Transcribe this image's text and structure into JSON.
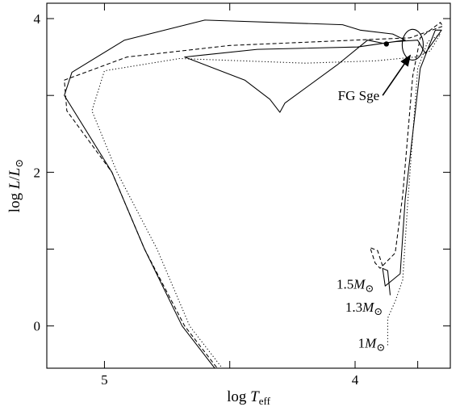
{
  "chart_data": {
    "type": "line",
    "title": "",
    "xlabel": "log T_eff",
    "xlabel_parts": {
      "base": "log ",
      "sym": "T",
      "sub": "eff"
    },
    "ylabel": "log L/L_sun",
    "ylabel_parts": {
      "base": "log ",
      "sym1": "L",
      "slash": "/",
      "sym2": "L",
      "sun": "⊙"
    },
    "xlim": [
      5.23,
      3.62
    ],
    "ylim": [
      -0.55,
      4.2
    ],
    "x_reversed": true,
    "x_ticks": [
      {
        "value": 5.0,
        "label": "5"
      },
      {
        "value": 4.0,
        "label": "4"
      }
    ],
    "y_ticks": [
      {
        "value": 0,
        "label": "0"
      },
      {
        "value": 2,
        "label": "2"
      },
      {
        "value": 4,
        "label": "4"
      }
    ],
    "x_minor_ticks": [
      4.5,
      3.75
    ],
    "y_minor_ticks": [
      1,
      3
    ],
    "grid": false,
    "series": [
      {
        "mass_label": {
          "value": "1.5",
          "sym": "M",
          "sun": "⊙"
        },
        "style": "dashed",
        "points": [
          [
            3.89,
            0.78
          ],
          [
            3.91,
            0.98
          ],
          [
            3.94,
            1.02
          ],
          [
            3.92,
            0.82
          ],
          [
            3.9,
            0.75
          ],
          [
            3.84,
            0.95
          ],
          [
            3.81,
            1.7
          ],
          [
            3.77,
            3.25
          ],
          [
            3.74,
            3.75
          ],
          [
            3.66,
            3.95
          ],
          [
            3.65,
            3.9
          ],
          [
            3.78,
            3.75
          ],
          [
            4.0,
            3.72
          ],
          [
            4.5,
            3.65
          ],
          [
            4.91,
            3.5
          ],
          [
            5.16,
            3.2
          ],
          [
            5.15,
            2.8
          ],
          [
            4.97,
            2.0
          ],
          [
            4.84,
            1.0
          ],
          [
            4.68,
            0.0
          ],
          [
            4.55,
            -0.55
          ]
        ]
      },
      {
        "mass_label": {
          "value": "1.3",
          "sym": "M",
          "sun": "⊙"
        },
        "style": "solid",
        "points": [
          [
            3.86,
            0.4
          ],
          [
            3.87,
            0.72
          ],
          [
            3.89,
            0.75
          ],
          [
            3.88,
            0.52
          ],
          [
            3.85,
            0.6
          ],
          [
            3.82,
            0.68
          ],
          [
            3.8,
            1.65
          ],
          [
            3.74,
            3.35
          ],
          [
            3.68,
            3.85
          ],
          [
            3.655,
            3.85
          ],
          [
            3.72,
            3.55
          ],
          [
            3.75,
            3.72
          ],
          [
            3.84,
            3.7
          ],
          [
            3.89,
            3.68
          ],
          [
            3.95,
            3.72
          ],
          [
            4.07,
            3.4
          ],
          [
            4.28,
            2.9
          ],
          [
            4.3,
            2.78
          ],
          [
            4.34,
            2.95
          ],
          [
            4.44,
            3.2
          ],
          [
            4.68,
            3.5
          ],
          [
            4.39,
            3.6
          ],
          [
            3.99,
            3.63
          ],
          [
            3.8,
            3.72
          ],
          [
            3.85,
            3.8
          ],
          [
            3.98,
            3.85
          ],
          [
            4.05,
            3.92
          ],
          [
            4.6,
            3.98
          ],
          [
            4.92,
            3.72
          ],
          [
            5.13,
            3.3
          ],
          [
            5.16,
            3.0
          ],
          [
            4.97,
            2.0
          ],
          [
            4.84,
            1.0
          ],
          [
            4.69,
            0.0
          ],
          [
            4.56,
            -0.55
          ]
        ]
      },
      {
        "mass_label": {
          "value": "1",
          "sym": "M",
          "sun": "⊙"
        },
        "style": "dotted",
        "points": [
          [
            3.87,
            -0.25
          ],
          [
            3.87,
            0.1
          ],
          [
            3.84,
            0.32
          ],
          [
            3.81,
            0.6
          ],
          [
            3.79,
            1.6
          ],
          [
            3.75,
            3.35
          ],
          [
            3.71,
            3.7
          ],
          [
            3.66,
            3.8
          ],
          [
            3.7,
            3.58
          ],
          [
            3.76,
            3.5
          ],
          [
            3.92,
            3.45
          ],
          [
            4.2,
            3.42
          ],
          [
            4.7,
            3.48
          ],
          [
            5.0,
            3.32
          ],
          [
            5.05,
            2.8
          ],
          [
            4.95,
            2.0
          ],
          [
            4.79,
            1.0
          ],
          [
            4.66,
            0.0
          ],
          [
            4.53,
            -0.55
          ]
        ]
      }
    ],
    "marker_point": [
      3.875,
      3.67
    ],
    "highlight_ellipse": {
      "center": [
        3.77,
        3.66
      ],
      "rx_data": 0.042,
      "ry_data": 0.2
    },
    "annotation": {
      "text": "FG Sge",
      "arrow_from": [
        3.89,
        3.0
      ],
      "arrow_to": [
        3.78,
        3.52
      ]
    }
  }
}
